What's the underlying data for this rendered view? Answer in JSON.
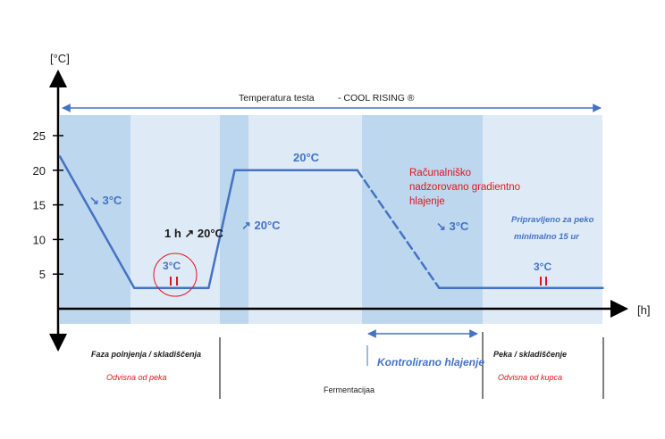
{
  "chart_data": {
    "type": "line",
    "title": "Temperatura testa",
    "title_suffix": "- COOL RISING ®",
    "ylabel": "[°C]",
    "xlabel": "[h]",
    "ylim": [
      0,
      25
    ],
    "yticks": [
      5,
      10,
      15,
      20,
      25
    ],
    "series": [
      {
        "points": [
          [
            0,
            22
          ],
          [
            1,
            3
          ],
          [
            2,
            3
          ],
          [
            2.35,
            20
          ],
          [
            4,
            20
          ],
          [
            5.1,
            3
          ],
          [
            7.3,
            3
          ]
        ]
      }
    ],
    "line_color": "#4472c4",
    "band_colors": [
      "#bdd7ee",
      "#deebf7"
    ],
    "annotations": {
      "cool_first": "↘ 3°C",
      "hold_temp": "3°C",
      "warm_step": "1 h ↗ 20°C",
      "rise_label": "↗ 20°C",
      "plateau": "20°C",
      "computer_controlled": [
        "Računalniško",
        "nadzorovano  gradientno",
        "hlajenje"
      ],
      "cool_second": "↘ 3°C",
      "ready": [
        "Pripravljeno za peko",
        "minimalno 15 ur"
      ],
      "end_temp": "3°C"
    },
    "phases": {
      "fill_store": "Faza polnjenja /  skladiščenja",
      "fill_store_note": "Odvisna od peka",
      "fermentation": "Fermentacijaa",
      "controlled_cooling": "Kontrolirano hlajenje",
      "bake_store": "Peka / skladiščenje",
      "bake_store_note": "Odvisna  od  kupca"
    }
  }
}
